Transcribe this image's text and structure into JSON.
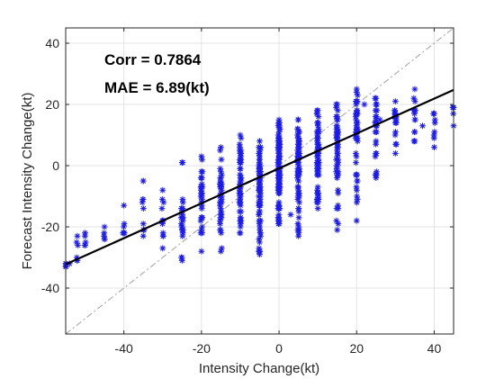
{
  "chart_data": {
    "type": "scatter",
    "title": "",
    "xlabel": "Intensity Change(kt)",
    "ylabel": "Forecast Intensity Change(kt)",
    "xlim": [
      -55,
      45
    ],
    "ylim": [
      -55,
      45
    ],
    "xticks": [
      -40,
      -20,
      0,
      20,
      40
    ],
    "yticks": [
      -40,
      -20,
      0,
      20,
      40
    ],
    "grid": true,
    "marker": "asterisk",
    "marker_color": "#1a1af0",
    "annotations": [
      "Corr = 0.7864",
      "MAE = 6.89(kt)"
    ],
    "reference_line": {
      "style": "dash-dot",
      "color": "#a0a0a0",
      "slope": 1,
      "intercept": 0
    },
    "fit_line": {
      "color": "#000000",
      "slope": 0.57,
      "intercept": -0.9
    },
    "columns": [
      {
        "x": -55,
        "ymin": -33,
        "ymax": -32,
        "n": 2
      },
      {
        "x": -52,
        "ymin": -31,
        "ymax": -23,
        "n": 4
      },
      {
        "x": -50,
        "ymin": -26,
        "ymax": -22,
        "n": 3
      },
      {
        "x": -45,
        "ymin": -24,
        "ymax": -20,
        "n": 3
      },
      {
        "x": -40,
        "ymin": -22,
        "ymax": -13,
        "n": 4
      },
      {
        "x": -35,
        "ymin": -23,
        "ymax": -5,
        "n": 8
      },
      {
        "x": -30,
        "ymin": -27,
        "ymax": -8,
        "n": 10
      },
      {
        "x": -25,
        "ymin": -31,
        "ymax": 1,
        "n": 22
      },
      {
        "x": -20,
        "ymin": -28,
        "ymax": 3,
        "n": 30
      },
      {
        "x": -15,
        "ymin": -28,
        "ymax": 6,
        "n": 40
      },
      {
        "x": -10,
        "ymin": -22,
        "ymax": 10,
        "n": 55
      },
      {
        "x": -5,
        "ymin": -29,
        "ymax": 8,
        "n": 80
      },
      {
        "x": 0,
        "ymin": -19,
        "ymax": 15,
        "n": 120
      },
      {
        "x": 5,
        "ymin": -23,
        "ymax": 15,
        "n": 80
      },
      {
        "x": 10,
        "ymin": -14,
        "ymax": 18,
        "n": 65
      },
      {
        "x": 15,
        "ymin": -21,
        "ymax": 20,
        "n": 55
      },
      {
        "x": 20,
        "ymin": -18,
        "ymax": 25,
        "n": 45
      },
      {
        "x": 25,
        "ymin": -4,
        "ymax": 22,
        "n": 30
      },
      {
        "x": 30,
        "ymin": 4,
        "ymax": 21,
        "n": 22
      },
      {
        "x": 35,
        "ymin": 8,
        "ymax": 25,
        "n": 14
      },
      {
        "x": 40,
        "ymin": 6,
        "ymax": 17,
        "n": 6
      },
      {
        "x": 45,
        "ymin": 13,
        "ymax": 19,
        "n": 6
      }
    ],
    "extra_points": [
      [
        -55,
        -33
      ],
      [
        -54,
        -32
      ],
      [
        37,
        13
      ],
      [
        26,
        15
      ],
      [
        22,
        20
      ],
      [
        3,
        -16
      ]
    ]
  }
}
